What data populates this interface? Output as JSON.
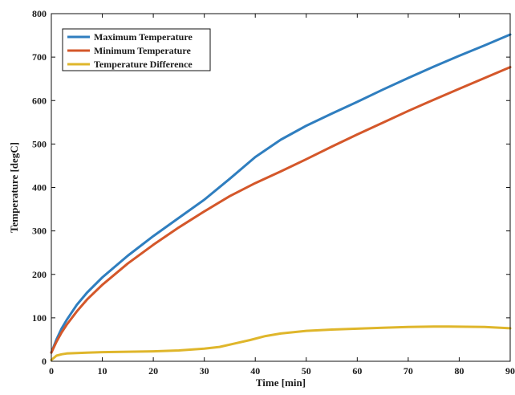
{
  "chart_data": {
    "type": "line",
    "title": "",
    "xlabel": "Time [min]",
    "ylabel": "Temperature [degC]",
    "xlim": [
      0,
      90
    ],
    "ylim": [
      0,
      800
    ],
    "x_ticks": [
      0,
      10,
      20,
      30,
      40,
      50,
      60,
      70,
      80,
      90
    ],
    "y_ticks": [
      0,
      100,
      200,
      300,
      400,
      500,
      600,
      700,
      800
    ],
    "grid": false,
    "legend_position": "top-left",
    "series": [
      {
        "name": "Maximum Temperature",
        "color": "#2f7ebf",
        "x": [
          0,
          1,
          2,
          3,
          5,
          7,
          10,
          15,
          20,
          25,
          30,
          35,
          40,
          45,
          50,
          55,
          60,
          65,
          70,
          75,
          80,
          85,
          90
        ],
        "y": [
          20,
          50,
          75,
          95,
          130,
          158,
          193,
          243,
          288,
          330,
          372,
          420,
          470,
          510,
          542,
          570,
          597,
          625,
          652,
          678,
          703,
          727,
          752
        ]
      },
      {
        "name": "Minimum Temperature",
        "color": "#d4572a",
        "x": [
          0,
          1,
          2,
          3,
          5,
          7,
          10,
          15,
          20,
          25,
          30,
          35,
          40,
          45,
          50,
          55,
          60,
          65,
          70,
          75,
          80,
          85,
          90
        ],
        "y": [
          20,
          45,
          66,
          84,
          115,
          142,
          176,
          225,
          268,
          308,
          345,
          380,
          410,
          437,
          465,
          494,
          522,
          549,
          576,
          602,
          627,
          652,
          677
        ]
      },
      {
        "name": "Temperature Difference",
        "color": "#dfb62b",
        "x": [
          0,
          1,
          2,
          3,
          5,
          7,
          10,
          15,
          20,
          25,
          30,
          33,
          36,
          39,
          42,
          45,
          50,
          55,
          60,
          65,
          70,
          75,
          78,
          85,
          90
        ],
        "y": [
          3,
          13,
          16,
          18,
          19,
          20,
          21,
          22,
          23,
          25,
          29,
          33,
          41,
          49,
          58,
          64,
          70,
          73,
          75,
          77,
          79,
          80,
          80,
          79,
          76
        ]
      }
    ]
  }
}
